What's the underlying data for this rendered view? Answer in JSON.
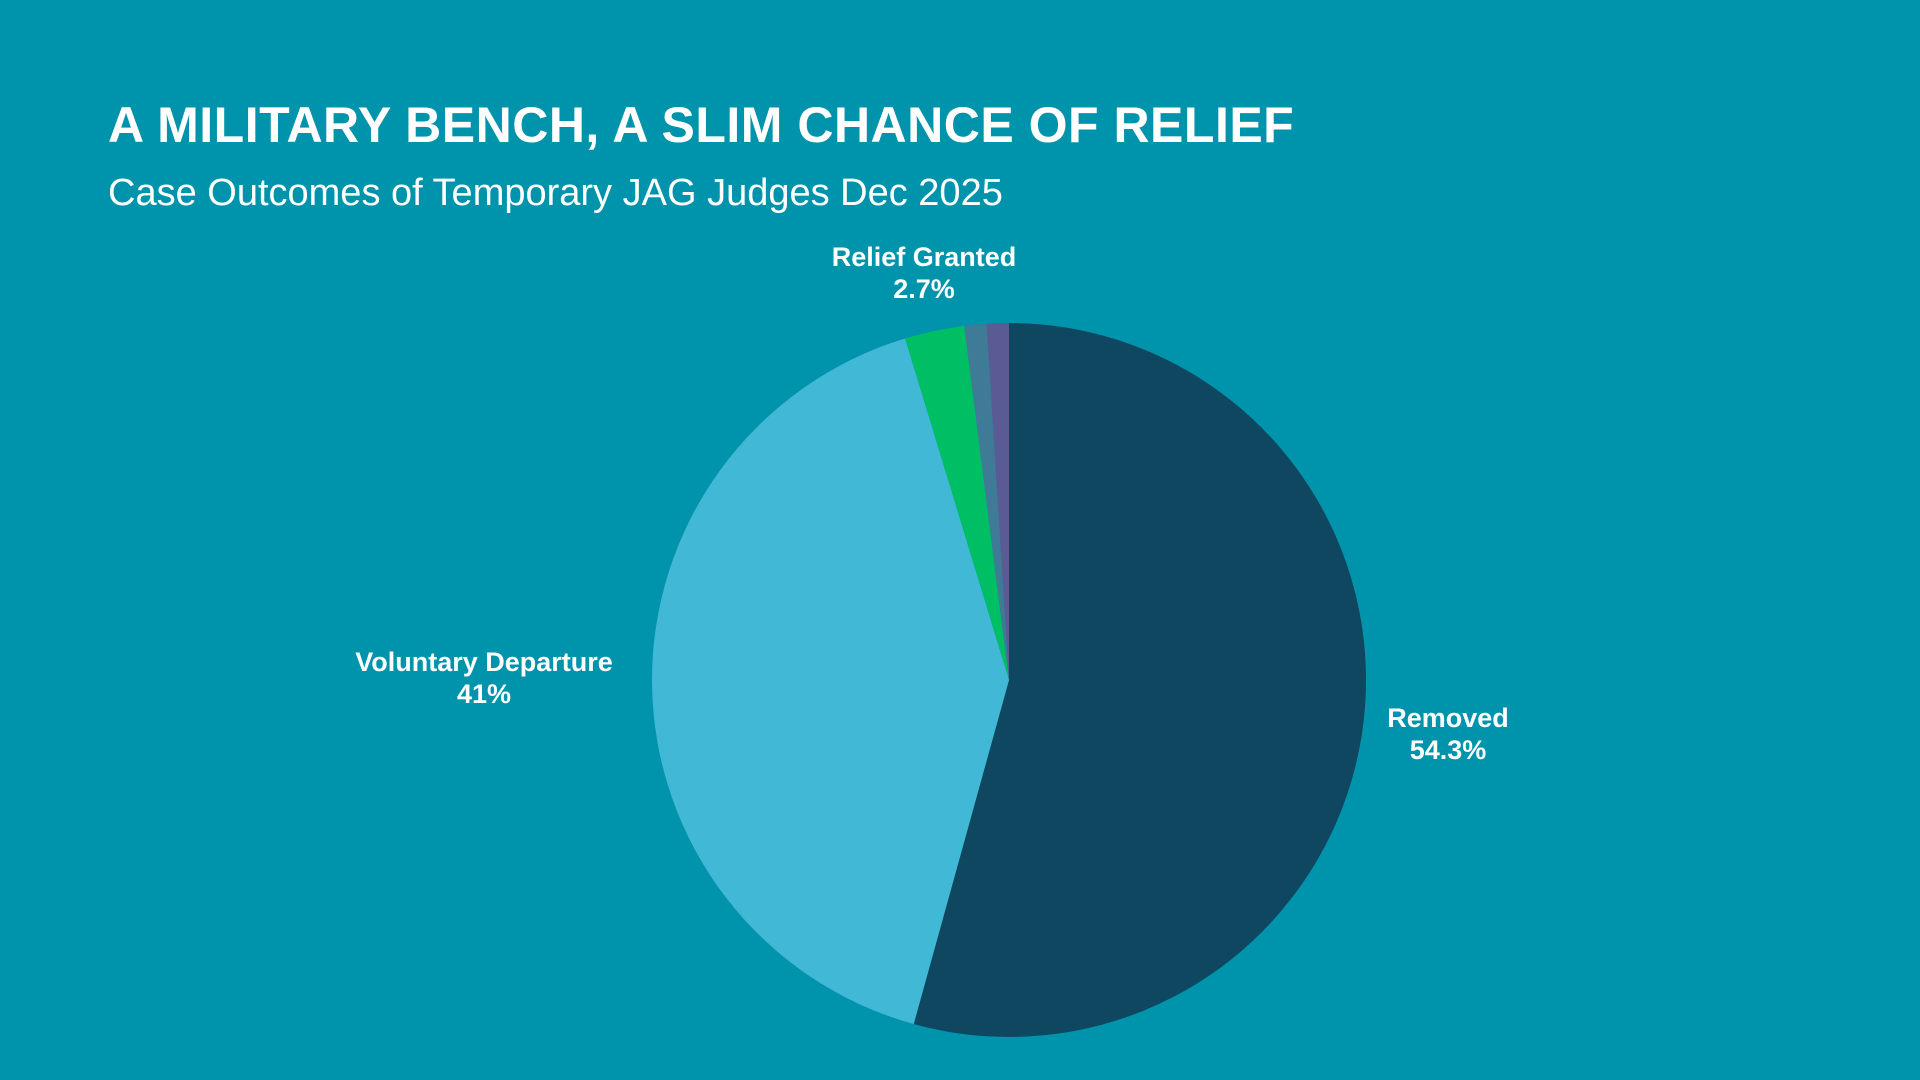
{
  "chart_data": {
    "type": "pie",
    "title": "A MILITARY BENCH, A SLIM CHANCE OF RELIEF",
    "subtitle": "Case Outcomes of Temporary JAG Judges Dec 2025",
    "slices": [
      {
        "label": "Removed",
        "value": 54.3,
        "display": "54.3%",
        "color": "#0e475f",
        "labeled": true
      },
      {
        "label": "Voluntary Departure",
        "value": 41,
        "display": "41%",
        "color": "#41b8d5",
        "labeled": true
      },
      {
        "label": "Relief Granted",
        "value": 2.7,
        "display": "2.7%",
        "color": "#00be64",
        "labeled": true
      },
      {
        "label": "",
        "value": 1.0,
        "display": "",
        "color": "#3f7a96",
        "labeled": false
      },
      {
        "label": "",
        "value": 1.0,
        "display": "",
        "color": "#5a5a94",
        "labeled": false
      }
    ],
    "start_angle": "12 o'clock",
    "direction": "clockwise",
    "legend": "none"
  }
}
